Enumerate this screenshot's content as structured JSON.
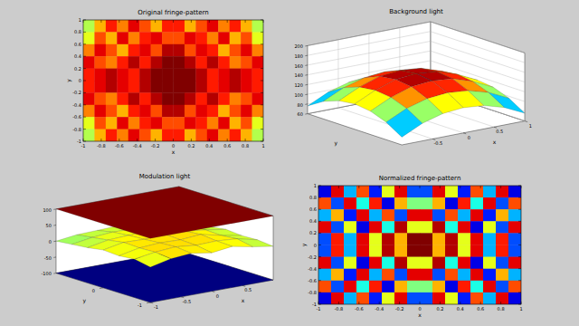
{
  "chart_data": [
    {
      "type": "heatmap",
      "title": "Original fringe-pattern",
      "x_label": "x",
      "y_label": "y",
      "xlim": [
        -1,
        1
      ],
      "ylim": [
        -1,
        1
      ],
      "xticks": [
        -1,
        -0.8,
        -0.6,
        -0.4,
        -0.2,
        0,
        0.2,
        0.4,
        0.6,
        0.8,
        1
      ],
      "yticks": [
        -1,
        -0.8,
        -0.6,
        -0.4,
        -0.2,
        0,
        0.2,
        0.4,
        0.6,
        0.8,
        1
      ],
      "clim": [
        0,
        1
      ],
      "cells": [
        [
          0.55,
          0.7,
          0.85,
          0.75,
          0.9,
          0.8,
          0.7,
          0.85,
          0.85,
          0.7,
          0.8,
          0.9,
          0.75,
          0.85,
          0.7,
          0.55
        ],
        [
          0.6,
          0.8,
          0.7,
          0.9,
          0.75,
          0.85,
          0.9,
          0.8,
          0.8,
          0.9,
          0.85,
          0.75,
          0.9,
          0.7,
          0.8,
          0.6
        ],
        [
          0.75,
          0.9,
          0.8,
          0.7,
          0.85,
          0.9,
          0.8,
          0.95,
          0.95,
          0.8,
          0.9,
          0.85,
          0.7,
          0.8,
          0.9,
          0.75
        ],
        [
          0.9,
          0.8,
          0.75,
          0.85,
          0.95,
          0.85,
          0.95,
          1.0,
          1.0,
          0.95,
          0.85,
          0.95,
          0.85,
          0.75,
          0.8,
          0.9
        ],
        [
          0.85,
          0.9,
          0.95,
          0.9,
          0.85,
          0.95,
          1.0,
          1.0,
          1.0,
          1.0,
          0.95,
          0.85,
          0.9,
          0.95,
          0.9,
          0.85
        ],
        [
          0.85,
          0.9,
          0.95,
          0.9,
          0.85,
          0.95,
          1.0,
          1.0,
          1.0,
          1.0,
          0.95,
          0.85,
          0.9,
          0.95,
          0.9,
          0.85
        ],
        [
          0.9,
          0.8,
          0.75,
          0.85,
          0.95,
          0.85,
          0.95,
          1.0,
          1.0,
          0.95,
          0.85,
          0.95,
          0.85,
          0.75,
          0.8,
          0.9
        ],
        [
          0.75,
          0.9,
          0.8,
          0.7,
          0.85,
          0.9,
          0.8,
          0.95,
          0.95,
          0.8,
          0.9,
          0.85,
          0.7,
          0.8,
          0.9,
          0.75
        ],
        [
          0.6,
          0.8,
          0.7,
          0.9,
          0.75,
          0.85,
          0.9,
          0.8,
          0.8,
          0.9,
          0.85,
          0.75,
          0.9,
          0.7,
          0.8,
          0.6
        ],
        [
          0.55,
          0.7,
          0.85,
          0.75,
          0.9,
          0.8,
          0.7,
          0.85,
          0.85,
          0.7,
          0.8,
          0.9,
          0.75,
          0.85,
          0.7,
          0.55
        ]
      ]
    },
    {
      "type": "surface",
      "title": "Background light",
      "x_label": "x",
      "y_label": "y",
      "xlim": [
        -1,
        1
      ],
      "ylim": [
        -1,
        1
      ],
      "zlim": [
        60,
        200
      ],
      "xticks": [
        -0.5,
        0,
        0.5,
        1
      ],
      "yticks": [],
      "zticks": [
        60,
        80,
        100,
        120,
        140,
        160,
        180,
        200
      ],
      "grid": true,
      "clim": [
        70,
        150
      ],
      "surfaces": [
        {
          "x": [
            -1,
            -0.6667,
            -0.3333,
            0,
            0.3333,
            0.6667,
            1
          ],
          "y": [
            -1,
            -0.6667,
            -0.3333,
            0,
            0.3333,
            0.6667,
            1
          ],
          "values": [
            [
              76,
              96,
              108,
              112,
              108,
              96,
              76
            ],
            [
              96,
              116,
              128,
              132,
              128,
              116,
              96
            ],
            [
              108,
              128,
              142,
              146,
              142,
              128,
              108
            ],
            [
              112,
              132,
              146,
              150,
              146,
              132,
              112
            ],
            [
              108,
              128,
              142,
              146,
              142,
              128,
              108
            ],
            [
              96,
              116,
              128,
              132,
              128,
              116,
              96
            ],
            [
              76,
              96,
              108,
              112,
              108,
              96,
              76
            ]
          ]
        }
      ]
    },
    {
      "type": "surface",
      "title": "Modulation light",
      "x_label": "x",
      "y_label": "y",
      "xlim": [
        -1,
        1
      ],
      "ylim": [
        -1,
        1
      ],
      "zlim": [
        -100,
        100
      ],
      "xticks": [
        -1,
        -0.5,
        0,
        0.5
      ],
      "yticks": [
        -1,
        0
      ],
      "zticks": [
        -100,
        -50,
        0,
        50,
        100
      ],
      "grid": false,
      "clim": [
        -100,
        100
      ],
      "surfaces": [
        {
          "x": [
            -1,
            1
          ],
          "y": [
            -1,
            1
          ],
          "values": [
            [
              100,
              100
            ],
            [
              100,
              100
            ]
          ]
        },
        {
          "x": [
            -1,
            -0.6667,
            -0.3333,
            0,
            0.3333,
            0.6667,
            1
          ],
          "y": [
            -1,
            -0.6667,
            -0.3333,
            0,
            0.3333,
            0.6667,
            1
          ],
          "values": [
            [
              10,
              25,
              30,
              20,
              28,
              15,
              5
            ],
            [
              20,
              30,
              35,
              28,
              30,
              25,
              10
            ],
            [
              15,
              28,
              32,
              30,
              35,
              20,
              8
            ],
            [
              18,
              30,
              28,
              32,
              30,
              22,
              12
            ],
            [
              10,
              22,
              25,
              28,
              26,
              18,
              5
            ],
            [
              5,
              15,
              20,
              18,
              20,
              12,
              0
            ],
            [
              0,
              8,
              10,
              12,
              10,
              5,
              -5
            ]
          ]
        },
        {
          "x": [
            -1,
            1
          ],
          "y": [
            -1,
            1
          ],
          "values": [
            [
              -100,
              -100
            ],
            [
              -100,
              -100
            ]
          ]
        }
      ]
    },
    {
      "type": "heatmap",
      "title": "Normalized fringe-pattern",
      "x_label": "x",
      "y_label": "y",
      "xlim": [
        -1,
        1
      ],
      "ylim": [
        -1,
        1
      ],
      "xticks": [
        -1,
        -0.8,
        -0.6,
        -0.4,
        -0.2,
        0,
        0.2,
        0.4,
        0.6,
        0.8,
        1
      ],
      "yticks": [
        -1,
        -0.8,
        -0.6,
        -0.4,
        -0.2,
        0,
        0.2,
        0.4,
        0.6,
        0.8,
        1
      ],
      "clim": [
        0,
        1
      ],
      "cells": [
        [
          0.1,
          0.9,
          0.3,
          0.8,
          0.15,
          0.6,
          0.9,
          0.2,
          0.2,
          0.9,
          0.6,
          0.15,
          0.8,
          0.3,
          0.9,
          0.1
        ],
        [
          0.8,
          0.2,
          0.9,
          0.4,
          0.85,
          0.1,
          0.7,
          0.5,
          0.5,
          0.7,
          0.1,
          0.85,
          0.4,
          0.9,
          0.2,
          0.8
        ],
        [
          0.3,
          0.7,
          0.15,
          0.9,
          0.3,
          0.8,
          0.2,
          0.9,
          0.9,
          0.2,
          0.8,
          0.3,
          0.9,
          0.15,
          0.7,
          0.3
        ],
        [
          0.9,
          0.2,
          0.6,
          0.1,
          0.9,
          0.4,
          0.95,
          0.6,
          0.6,
          0.95,
          0.4,
          0.9,
          0.1,
          0.6,
          0.2,
          0.9
        ],
        [
          0.2,
          0.85,
          0.3,
          0.9,
          0.6,
          0.95,
          0.7,
          1.0,
          1.0,
          0.7,
          0.95,
          0.6,
          0.9,
          0.3,
          0.85,
          0.2
        ],
        [
          0.2,
          0.85,
          0.3,
          0.9,
          0.6,
          0.95,
          0.7,
          1.0,
          1.0,
          0.7,
          0.95,
          0.6,
          0.9,
          0.3,
          0.85,
          0.2
        ],
        [
          0.9,
          0.2,
          0.6,
          0.1,
          0.9,
          0.4,
          0.95,
          0.6,
          0.6,
          0.95,
          0.4,
          0.9,
          0.1,
          0.6,
          0.2,
          0.9
        ],
        [
          0.3,
          0.7,
          0.15,
          0.9,
          0.3,
          0.8,
          0.2,
          0.9,
          0.9,
          0.2,
          0.8,
          0.3,
          0.9,
          0.15,
          0.7,
          0.3
        ],
        [
          0.8,
          0.2,
          0.9,
          0.4,
          0.85,
          0.1,
          0.7,
          0.5,
          0.5,
          0.7,
          0.1,
          0.85,
          0.4,
          0.9,
          0.2,
          0.8
        ],
        [
          0.1,
          0.9,
          0.3,
          0.8,
          0.15,
          0.6,
          0.9,
          0.2,
          0.2,
          0.9,
          0.6,
          0.15,
          0.8,
          0.3,
          0.9,
          0.1
        ]
      ]
    }
  ]
}
